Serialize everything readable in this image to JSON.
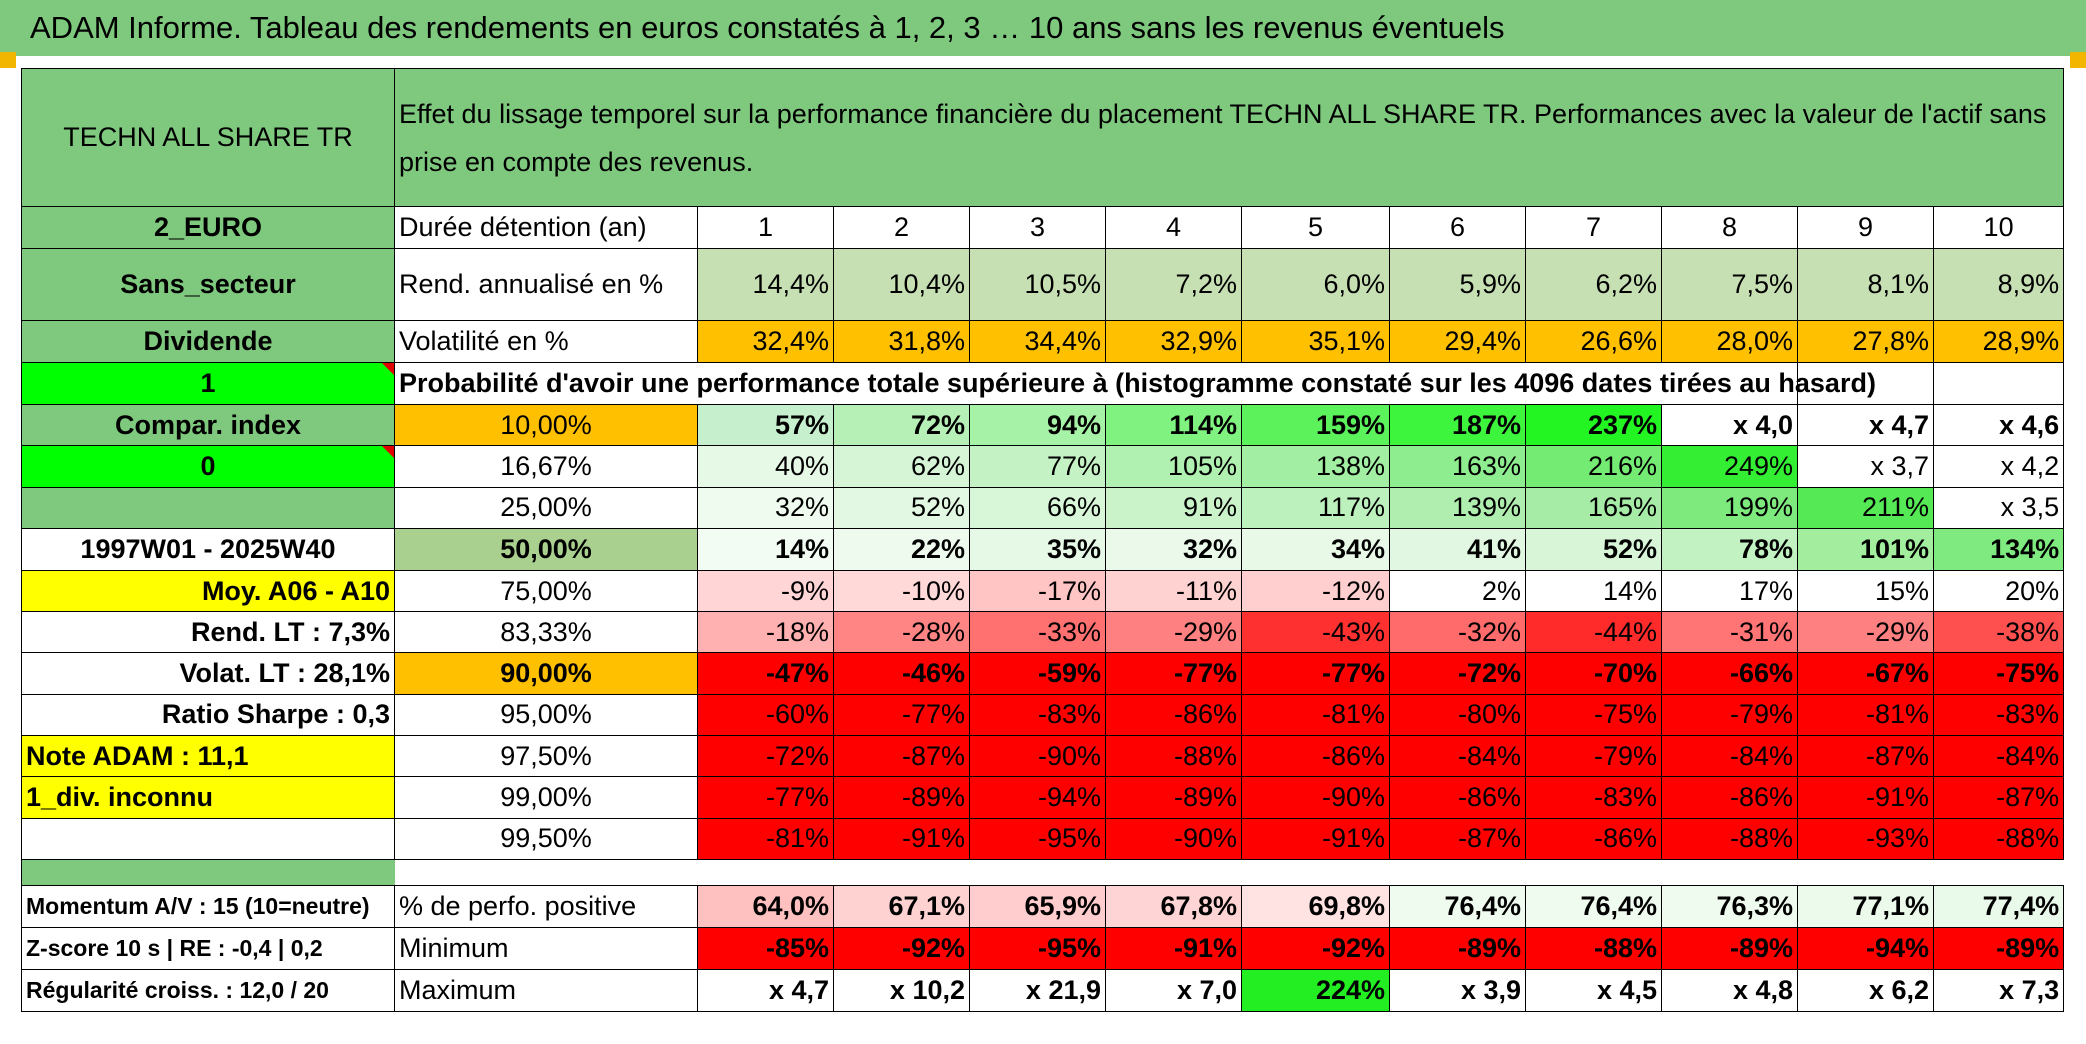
{
  "banner": "ADAM Informe. Tableau des rendements en euros constatés à 1, 2, 3 … 10 ans sans les revenus éventuels",
  "asset_name": "TECHN ALL SHARE TR",
  "header_text": "Effet du lissage temporel sur la performance financière du placement TECHN ALL SHARE TR. Performances avec la valeur de l'actif sans prise en compte des revenus.",
  "side": {
    "currency": "2_EURO",
    "sector": "Sans_secteur",
    "dividend": "Dividende",
    "flag1": "1",
    "compar": "Compar. index",
    "flag0": "0",
    "blank": "",
    "period": "1997W01 - 2025W40",
    "moy": "Moy. A06 - A10",
    "rend_lt": "Rend. LT :   7,3%",
    "volat_lt": "Volat. LT :   28,1%",
    "sharpe": "Ratio Sharpe :   0,3",
    "note": "Note ADAM : 11,1",
    "div": "1_div. inconnu",
    "blank2": ""
  },
  "labels": {
    "duree": "Durée détention (an)",
    "rend": "Rend. annualisé en %",
    "vol": "Volatilité en %",
    "prob": "Probabilité d'avoir une performance totale supérieure à (histogramme constaté sur les 4096 dates tirées au hasard)"
  },
  "years": [
    "1",
    "2",
    "3",
    "4",
    "5",
    "6",
    "7",
    "8",
    "9",
    "10"
  ],
  "rend": [
    "14,4%",
    "10,4%",
    "10,5%",
    "7,2%",
    "6,0%",
    "5,9%",
    "6,2%",
    "7,5%",
    "8,1%",
    "8,9%"
  ],
  "vol": [
    "32,4%",
    "31,8%",
    "34,4%",
    "32,9%",
    "35,1%",
    "29,4%",
    "26,6%",
    "28,0%",
    "27,8%",
    "28,9%"
  ],
  "pct_rows": [
    {
      "p": "10,00%",
      "v": [
        "57%",
        "72%",
        "94%",
        "114%",
        "159%",
        "187%",
        "237%",
        "x 4,0",
        "x 4,7",
        "x 4,6"
      ]
    },
    {
      "p": "16,67%",
      "v": [
        "40%",
        "62%",
        "77%",
        "105%",
        "138%",
        "163%",
        "216%",
        "249%",
        "x 3,7",
        "x 4,2"
      ]
    },
    {
      "p": "25,00%",
      "v": [
        "32%",
        "52%",
        "66%",
        "91%",
        "117%",
        "139%",
        "165%",
        "199%",
        "211%",
        "x 3,5"
      ]
    },
    {
      "p": "50,00%",
      "v": [
        "14%",
        "22%",
        "35%",
        "32%",
        "34%",
        "41%",
        "52%",
        "78%",
        "101%",
        "134%"
      ]
    },
    {
      "p": "75,00%",
      "v": [
        "-9%",
        "-10%",
        "-17%",
        "-11%",
        "-12%",
        "2%",
        "14%",
        "17%",
        "15%",
        "20%"
      ]
    },
    {
      "p": "83,33%",
      "v": [
        "-18%",
        "-28%",
        "-33%",
        "-29%",
        "-43%",
        "-32%",
        "-44%",
        "-31%",
        "-29%",
        "-38%"
      ]
    },
    {
      "p": "90,00%",
      "v": [
        "-47%",
        "-46%",
        "-59%",
        "-77%",
        "-77%",
        "-72%",
        "-70%",
        "-66%",
        "-67%",
        "-75%"
      ]
    },
    {
      "p": "95,00%",
      "v": [
        "-60%",
        "-77%",
        "-83%",
        "-86%",
        "-81%",
        "-80%",
        "-75%",
        "-79%",
        "-81%",
        "-83%"
      ]
    },
    {
      "p": "97,50%",
      "v": [
        "-72%",
        "-87%",
        "-90%",
        "-88%",
        "-86%",
        "-84%",
        "-79%",
        "-84%",
        "-87%",
        "-84%"
      ]
    },
    {
      "p": "99,00%",
      "v": [
        "-77%",
        "-89%",
        "-94%",
        "-89%",
        "-90%",
        "-86%",
        "-83%",
        "-86%",
        "-91%",
        "-87%"
      ]
    },
    {
      "p": "99,50%",
      "v": [
        "-81%",
        "-91%",
        "-95%",
        "-90%",
        "-91%",
        "-87%",
        "-86%",
        "-88%",
        "-93%",
        "-88%"
      ]
    }
  ],
  "bottom": {
    "side": [
      "Momentum A/V : 15 (10=neutre)",
      "Z-score 10 s | RE : -0,4 | 0,2",
      "Régularité croiss. : 12,0 / 20"
    ],
    "labels": [
      "% de perfo. positive",
      "Minimum",
      "Maximum"
    ],
    "pos": [
      "64,0%",
      "67,1%",
      "65,9%",
      "67,8%",
      "69,8%",
      "76,4%",
      "76,4%",
      "76,3%",
      "77,1%",
      "77,4%"
    ],
    "min": [
      "-85%",
      "-92%",
      "-95%",
      "-91%",
      "-92%",
      "-89%",
      "-88%",
      "-89%",
      "-94%",
      "-89%"
    ],
    "max": [
      "x 4,7",
      "x 10,2",
      "x 21,9",
      "x 7,0",
      "224%",
      "x 3,9",
      "x 4,5",
      "x 4,8",
      "x 6,2",
      "x 7,3"
    ]
  },
  "colors": {
    "pct_rows": [
      [
        "#c6efce",
        "#b6f0b6",
        "#a6f2a6",
        "#7ff27f",
        "#5cf25c",
        "#3ef53e",
        "#22f522",
        "#ffffff",
        "#ffffff",
        "#ffffff"
      ],
      [
        "#e6f8e6",
        "#d6f5d6",
        "#c4f2c4",
        "#b0f0b0",
        "#a2eea2",
        "#8eed8e",
        "#74ec74",
        "#33ee33",
        "#ffffff",
        "#ffffff"
      ],
      [
        "#eefbee",
        "#e2f8e2",
        "#d8f6d8",
        "#caf3ca",
        "#bcf0bc",
        "#b0eeb0",
        "#a6eca6",
        "#7eea7e",
        "#55ea55",
        "#ffffff"
      ],
      [
        "#f3fcf3",
        "#eefaee",
        "#e6f8e6",
        "#eaf9ea",
        "#e8f9e8",
        "#e2f7e2",
        "#d8f5d8",
        "#c2f2c2",
        "#a2ee9e",
        "#7fea7f"
      ],
      [
        "#ffd5d5",
        "#ffd8d8",
        "#ffc4c4",
        "#ffd2d2",
        "#ffcece",
        "#ffffff",
        "#ffffff",
        "#ffffff",
        "#ffffff",
        "#ffffff"
      ],
      [
        "#ffb0b0",
        "#ff8484",
        "#ff7070",
        "#ff8080",
        "#ff3030",
        "#ff6a6a",
        "#ff2a2a",
        "#ff7474",
        "#ff8080",
        "#ff5050"
      ],
      [
        "#ff0000",
        "#ff0000",
        "#ff0000",
        "#ff0000",
        "#ff0000",
        "#ff0000",
        "#ff0000",
        "#ff0000",
        "#ff0000",
        "#ff0000"
      ],
      [
        "#ff0000",
        "#ff0000",
        "#ff0000",
        "#ff0000",
        "#ff0000",
        "#ff0000",
        "#ff0000",
        "#ff0000",
        "#ff0000",
        "#ff0000"
      ],
      [
        "#ff0000",
        "#ff0000",
        "#ff0000",
        "#ff0000",
        "#ff0000",
        "#ff0000",
        "#ff0000",
        "#ff0000",
        "#ff0000",
        "#ff0000"
      ],
      [
        "#ff0000",
        "#ff0000",
        "#ff0000",
        "#ff0000",
        "#ff0000",
        "#ff0000",
        "#ff0000",
        "#ff0000",
        "#ff0000",
        "#ff0000"
      ],
      [
        "#ff0000",
        "#ff0000",
        "#ff0000",
        "#ff0000",
        "#ff0000",
        "#ff0000",
        "#ff0000",
        "#ff0000",
        "#ff0000",
        "#ff0000"
      ]
    ],
    "pos": [
      "#ffc0c0",
      "#ffd2d2",
      "#ffcdcd",
      "#ffd4d4",
      "#ffe2e2",
      "#f0fbf0",
      "#f0fbf0",
      "#f0fbf0",
      "#ecfaec",
      "#eafaea"
    ],
    "min": [
      "#ff0000",
      "#ff0000",
      "#ff0000",
      "#ff0000",
      "#ff0000",
      "#ff0000",
      "#ff0000",
      "#ff0000",
      "#ff0000",
      "#ff0000"
    ],
    "max": [
      "#ffffff",
      "#ffffff",
      "#ffffff",
      "#ffffff",
      "#22ee22",
      "#ffffff",
      "#ffffff",
      "#ffffff",
      "#ffffff",
      "#ffffff"
    ]
  }
}
